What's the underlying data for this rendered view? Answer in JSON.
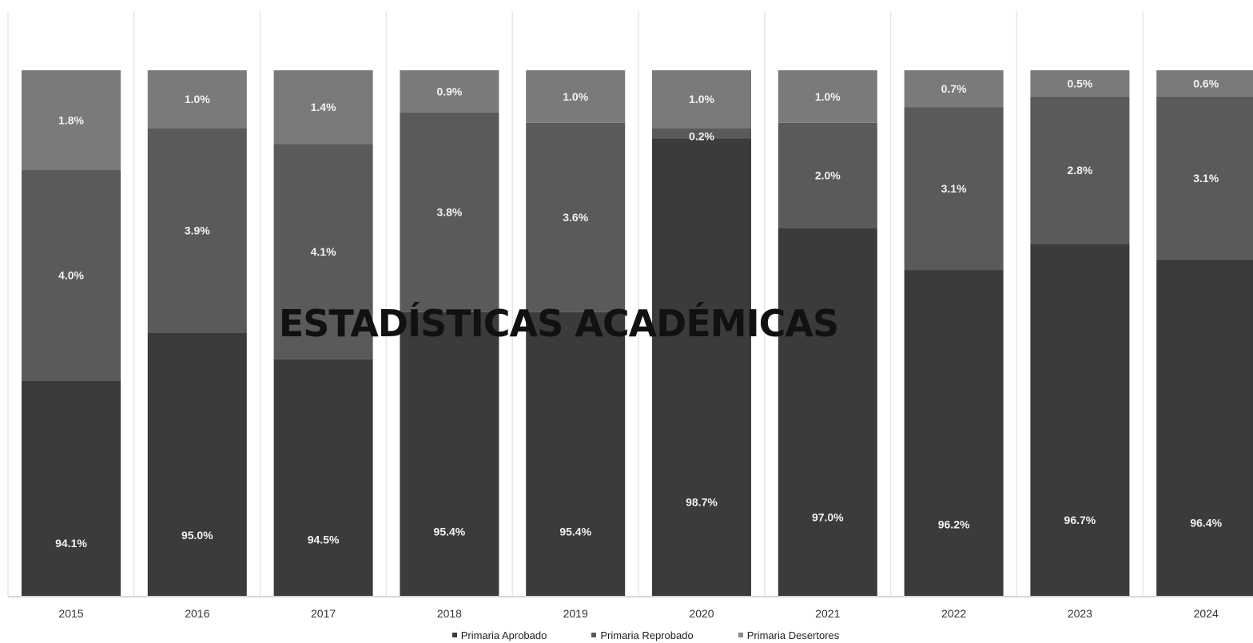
{
  "overlay": {
    "title": "ESTADÍSTICAS ACADÉMICAS"
  },
  "colors": {
    "aprobado": "#3b3b3b",
    "reprobado": "#5a5a5a",
    "desertores": "#7a7a7a",
    "grid": "#e6e6e6",
    "axis": "#c8c8c8",
    "label": "#f2f2f2",
    "tick": "#333333"
  },
  "chart_data": {
    "type": "bar",
    "stacked": true,
    "normalized": true,
    "grid": true,
    "legend_position": "bottom",
    "categories": [
      "2015",
      "2016",
      "2017",
      "2018",
      "2019",
      "2020",
      "2021",
      "2022",
      "2023",
      "2024"
    ],
    "series": [
      {
        "name": "Primaria Aprobado",
        "values": [
          94.1,
          95.0,
          94.5,
          95.4,
          95.4,
          98.7,
          97.0,
          96.2,
          96.7,
          96.4
        ],
        "labels": [
          "94.1%",
          "95.0%",
          "94.5%",
          "95.4%",
          "95.4%",
          "98.7%",
          "97.0%",
          "96.2%",
          "96.7%",
          "96.4%"
        ]
      },
      {
        "name": "Primaria Reprobado",
        "values": [
          4.0,
          3.9,
          4.1,
          3.8,
          3.6,
          0.2,
          2.0,
          3.1,
          2.8,
          3.1
        ],
        "labels": [
          "4.0%",
          "3.9%",
          "4.1%",
          "3.8%",
          "3.6%",
          "0.2%",
          "2.0%",
          "3.1%",
          "2.8%",
          "3.1%"
        ]
      },
      {
        "name": "Primaria Desertores",
        "values": [
          1.8,
          1.0,
          1.4,
          0.9,
          1.0,
          1.0,
          1.0,
          0.7,
          0.5,
          0.6
        ],
        "labels": [
          "1.8%",
          "1.0%",
          "1.4%",
          "0.9%",
          "1.0%",
          "1.0%",
          "1.0%",
          "0.7%",
          "0.5%",
          "0.6%"
        ]
      }
    ],
    "y_axis_start": 90,
    "y_axis_end": 100
  }
}
